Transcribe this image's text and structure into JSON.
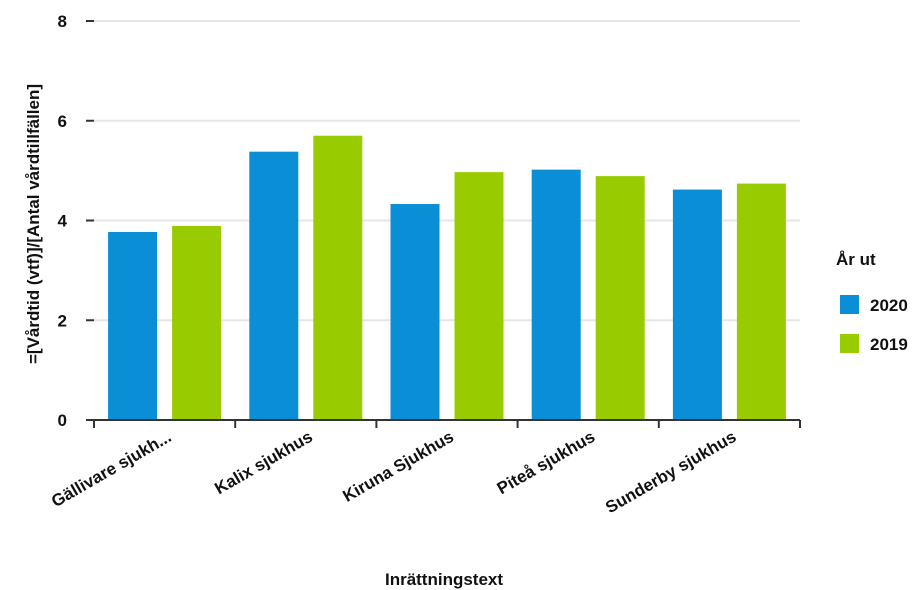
{
  "chart_data": {
    "type": "bar",
    "categories": [
      "Gällivare sjukh...",
      "Kalix sjukhus",
      "Kiruna Sjukhus",
      "Piteå sjukhus",
      "Sunderby sjukhus"
    ],
    "series": [
      {
        "name": "2020",
        "color": "#0a8fd6",
        "values": [
          3.77,
          5.38,
          4.33,
          5.02,
          4.62
        ]
      },
      {
        "name": "2019",
        "color": "#99cc00",
        "values": [
          3.89,
          5.7,
          4.97,
          4.89,
          4.74
        ]
      }
    ],
    "yticks": [
      "0",
      "2",
      "4",
      "6",
      "8"
    ],
    "ylim": [
      0,
      8
    ],
    "xlabel": "Inrättningstext",
    "ylabel": "=[Vårdtid (vtf)]/[Antal vårdtillfällen]",
    "legend_title": "År ut",
    "legend_position": "right",
    "grid": true,
    "gridline_color": "#e6e6e6",
    "axis_color": "#333333"
  }
}
